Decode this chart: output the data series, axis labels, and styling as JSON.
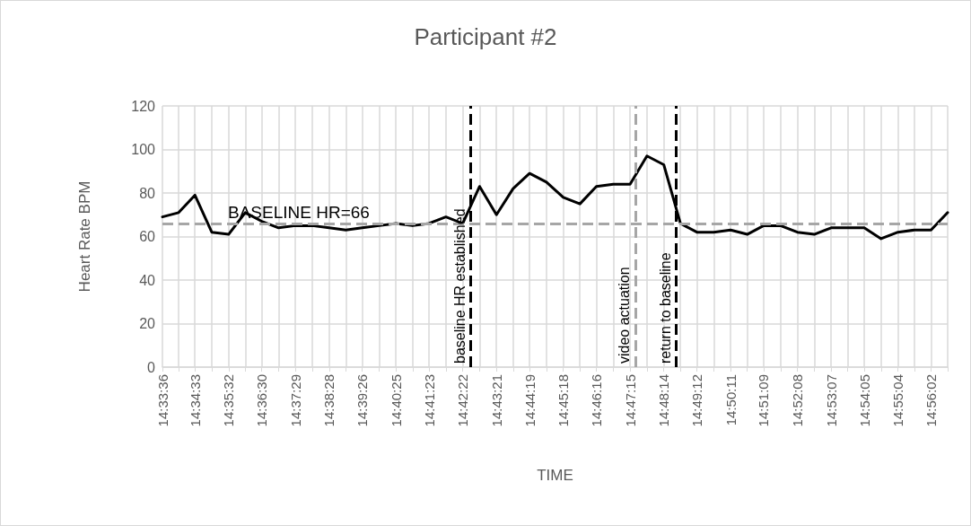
{
  "chart_data": {
    "type": "line",
    "title": "Participant #2",
    "xlabel": "TIME",
    "ylabel": "Heart Rate BPM",
    "x": [
      14.56,
      14.5679,
      14.5758,
      14.584,
      14.5922,
      14.6003,
      14.6083,
      14.6165,
      14.6247,
      14.6329,
      14.6411,
      14.6492,
      14.6572,
      14.6654,
      14.6736,
      14.6817,
      14.6897,
      14.6979,
      14.7061,
      14.7143,
      14.7225,
      14.7306,
      14.7386,
      14.7468,
      14.755,
      14.7631,
      14.7711,
      14.7793,
      14.7875,
      14.7957,
      14.8039,
      14.812,
      14.82,
      14.8282,
      14.8364,
      14.8445,
      14.8525,
      14.8607,
      14.8689,
      14.8771,
      14.8853,
      14.8934,
      14.9014,
      14.9096,
      14.9178,
      14.9259,
      14.9339,
      14.942
    ],
    "series": [
      {
        "color": "#000000",
        "values": [
          69,
          71,
          79,
          62,
          61,
          71,
          67,
          64,
          65,
          65,
          64,
          63,
          64,
          65,
          66,
          65,
          66,
          69,
          66,
          83,
          70,
          82,
          89,
          85,
          78,
          75,
          83,
          84,
          84,
          97,
          93,
          66,
          62,
          62,
          63,
          61,
          65,
          65,
          62,
          61,
          64,
          64,
          64,
          59,
          62,
          63,
          63,
          71
        ]
      }
    ],
    "xlim": [
      14.56,
      14.942
    ],
    "xticks": [
      {
        "value": 14.56,
        "label": "14:33:36"
      },
      {
        "value": 14.5679,
        "label": null
      },
      {
        "value": 14.5758,
        "label": "14:34:33"
      },
      {
        "value": 14.584,
        "label": null
      },
      {
        "value": 14.5922,
        "label": "14:35:32"
      },
      {
        "value": 14.6003,
        "label": null
      },
      {
        "value": 14.6083,
        "label": "14:36:30"
      },
      {
        "value": 14.6165,
        "label": null
      },
      {
        "value": 14.6247,
        "label": "14:37:29"
      },
      {
        "value": 14.6329,
        "label": null
      },
      {
        "value": 14.6411,
        "label": "14:38:28"
      },
      {
        "value": 14.6492,
        "label": null
      },
      {
        "value": 14.6572,
        "label": "14:39:26"
      },
      {
        "value": 14.6654,
        "label": null
      },
      {
        "value": 14.6736,
        "label": "14:40:25"
      },
      {
        "value": 14.6817,
        "label": null
      },
      {
        "value": 14.6897,
        "label": "14:41:23"
      },
      {
        "value": 14.6979,
        "label": null
      },
      {
        "value": 14.7061,
        "label": "14:42:22"
      },
      {
        "value": 14.7143,
        "label": null
      },
      {
        "value": 14.7225,
        "label": "14:43:21"
      },
      {
        "value": 14.7306,
        "label": null
      },
      {
        "value": 14.7386,
        "label": "14:44:19"
      },
      {
        "value": 14.7468,
        "label": null
      },
      {
        "value": 14.755,
        "label": "14:45:18"
      },
      {
        "value": 14.7631,
        "label": null
      },
      {
        "value": 14.7711,
        "label": "14:46:16"
      },
      {
        "value": 14.7793,
        "label": null
      },
      {
        "value": 14.7875,
        "label": "14:47:15"
      },
      {
        "value": 14.7957,
        "label": null
      },
      {
        "value": 14.8039,
        "label": "14:48:14"
      },
      {
        "value": 14.812,
        "label": null
      },
      {
        "value": 14.82,
        "label": "14:49:12"
      },
      {
        "value": 14.8282,
        "label": null
      },
      {
        "value": 14.8364,
        "label": "14:50:11"
      },
      {
        "value": 14.8445,
        "label": null
      },
      {
        "value": 14.8525,
        "label": "14:51:09"
      },
      {
        "value": 14.8607,
        "label": null
      },
      {
        "value": 14.8689,
        "label": "14:52:08"
      },
      {
        "value": 14.8771,
        "label": null
      },
      {
        "value": 14.8853,
        "label": "14:53:07"
      },
      {
        "value": 14.8934,
        "label": null
      },
      {
        "value": 14.9014,
        "label": "14:54:05"
      },
      {
        "value": 14.9096,
        "label": null
      },
      {
        "value": 14.9178,
        "label": "14:55:04"
      },
      {
        "value": 14.9259,
        "label": null
      },
      {
        "value": 14.9339,
        "label": "14:56:02"
      },
      {
        "value": 14.942,
        "label": null
      }
    ],
    "ylim": [
      0,
      120
    ],
    "yticks": [
      0,
      20,
      40,
      60,
      80,
      100,
      120
    ],
    "ref_lines": [
      {
        "axis": "y",
        "value": 66,
        "label": "BASELINE HR=66",
        "color": "#a6a6a6",
        "line_style": "dashed"
      },
      {
        "axis": "x",
        "value": 14.7115,
        "label": "baseline HR established",
        "color": "#000000",
        "line_style": "dashed"
      },
      {
        "axis": "x",
        "value": 14.7916,
        "label": "video actuation",
        "color": "#a6a6a6",
        "line_style": "dashed"
      },
      {
        "axis": "x",
        "value": 14.81,
        "label": "return to baseline",
        "color": "#000000",
        "line_style": "dashed"
      }
    ],
    "grid": true,
    "marker": "none",
    "line_style": "solid"
  }
}
